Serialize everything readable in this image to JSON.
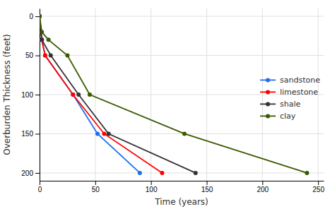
{
  "chart_data": {
    "type": "line",
    "xlabel": "Time (years)",
    "ylabel": "Overburden Thickness (feet)",
    "series": [
      {
        "name": "sandstone",
        "color": "#1F6FEB",
        "marker": "o",
        "x": [
          0,
          2,
          5,
          30,
          52,
          90
        ],
        "values": [
          0,
          30,
          50,
          100,
          150,
          200
        ]
      },
      {
        "name": "limestone",
        "color": "#FF0000",
        "marker": "o",
        "x": [
          0,
          2,
          5,
          30,
          58,
          110
        ],
        "values": [
          0,
          30,
          50,
          100,
          150,
          200
        ]
      },
      {
        "name": "shale",
        "color": "#333333",
        "marker": "o",
        "x": [
          0,
          2,
          10,
          35,
          62,
          140
        ],
        "values": [
          0,
          30,
          50,
          100,
          150,
          200
        ]
      },
      {
        "name": "clay",
        "color": "#3A5A00",
        "marker": "o",
        "x": [
          0,
          2,
          8,
          25,
          45,
          130,
          240
        ],
        "values": [
          0,
          20,
          30,
          50,
          100,
          150,
          200
        ]
      }
    ],
    "xlim": [
      0,
      255
    ],
    "ylim": [
      210,
      -10
    ],
    "xticks": [
      0,
      50,
      100,
      150,
      200,
      250
    ],
    "yticks": [
      0,
      50,
      100,
      150,
      200
    ],
    "grid": true,
    "legend": "right"
  }
}
